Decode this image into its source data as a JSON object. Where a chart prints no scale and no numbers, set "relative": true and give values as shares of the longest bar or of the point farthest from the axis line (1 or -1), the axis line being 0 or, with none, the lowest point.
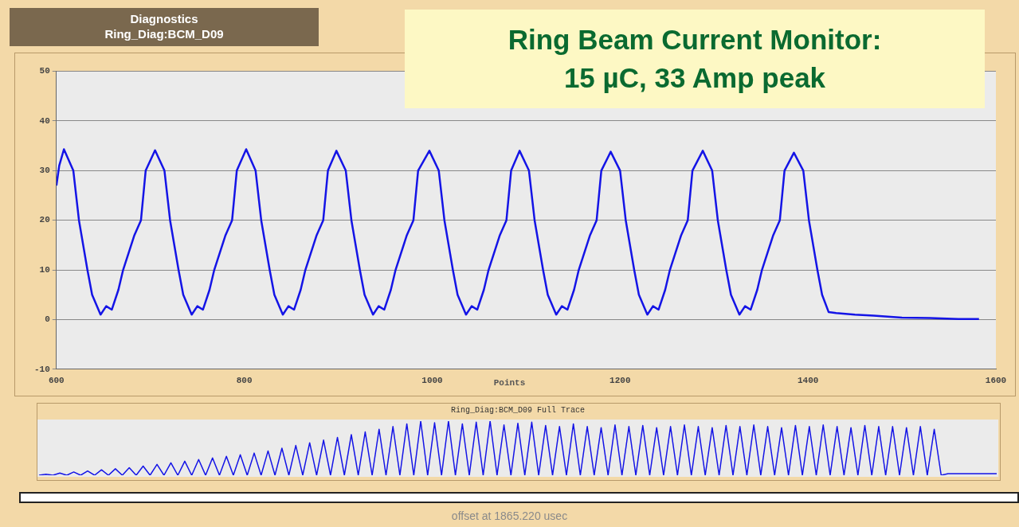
{
  "chart_data": [
    {
      "type": "line",
      "title": "Ring Beam Current Monitor:\n15 µC, 33 Amp peak",
      "subtitle": "Diagnostics\nRing_Diag:BCM_D09",
      "xlabel": "Points",
      "xlim": [
        600,
        1600
      ],
      "xticks": [
        600,
        800,
        1000,
        1200,
        1400,
        1600
      ],
      "ylim": [
        -10,
        50
      ],
      "yticks": [
        -10,
        0,
        10,
        20,
        30,
        40,
        50
      ],
      "grid": "y",
      "series": [
        {
          "color": "#1414e6",
          "x": [
            600,
            603,
            608,
            618,
            624,
            633,
            638,
            647,
            653,
            659,
            666,
            671,
            683,
            690,
            695,
            705,
            715,
            721,
            730,
            735,
            744,
            750,
            756,
            763,
            768,
            780,
            787,
            792,
            802,
            812,
            818,
            827,
            832,
            841,
            847,
            853,
            860,
            865,
            877,
            884,
            889,
            898,
            908,
            914,
            923,
            928,
            937,
            943,
            949,
            956,
            961,
            973,
            980,
            985,
            997,
            1007,
            1013,
            1022,
            1027,
            1036,
            1042,
            1048,
            1055,
            1060,
            1072,
            1079,
            1084,
            1093,
            1103,
            1109,
            1118,
            1123,
            1132,
            1138,
            1144,
            1151,
            1156,
            1168,
            1175,
            1180,
            1190,
            1200,
            1206,
            1215,
            1220,
            1229,
            1235,
            1241,
            1248,
            1253,
            1265,
            1272,
            1277,
            1288,
            1298,
            1304,
            1313,
            1318,
            1327,
            1333,
            1339,
            1346,
            1351,
            1363,
            1370,
            1375,
            1385,
            1395,
            1401,
            1410,
            1415,
            1422,
            1430,
            1450,
            1470,
            1500,
            1530,
            1560,
            1582
          ],
          "values": [
            27,
            31,
            34.3,
            30,
            20,
            10,
            5,
            1,
            2.7,
            2,
            6,
            10,
            17,
            20,
            30,
            34.1,
            30,
            20,
            10,
            5,
            1,
            2.7,
            2,
            6,
            10,
            17,
            20,
            30,
            34.3,
            30,
            20,
            10,
            5,
            1,
            2.7,
            2,
            6,
            10,
            17,
            20,
            30,
            34,
            30,
            20,
            10,
            5,
            1,
            2.7,
            2,
            6,
            10,
            17,
            20,
            30,
            34,
            30,
            20,
            10,
            5,
            1,
            2.7,
            2,
            6,
            10,
            17,
            20,
            30,
            34,
            30,
            20,
            10,
            5,
            1,
            2.7,
            2,
            6,
            10,
            17,
            20,
            30,
            33.8,
            30,
            20,
            10,
            5,
            1,
            2.7,
            2,
            6,
            10,
            17,
            20,
            30,
            34,
            30,
            20,
            10,
            5,
            1,
            2.7,
            2,
            6,
            10,
            17,
            20,
            30,
            33.6,
            30,
            20,
            10,
            5,
            1.5,
            1.3,
            1,
            0.8,
            0.4,
            0.3,
            0.1,
            0.1
          ]
        }
      ]
    },
    {
      "type": "line",
      "title": "Ring_Diag:BCM_D09 Full Trace",
      "relative": true,
      "annotations": [
        "offset at 1865.220 usec"
      ],
      "categories": [
        null,
        null,
        null,
        null,
        null,
        null,
        null,
        null,
        null,
        null,
        null,
        null,
        null,
        null,
        null,
        null,
        null,
        null,
        null,
        null,
        null,
        null,
        null,
        null,
        null,
        null,
        null,
        null,
        null,
        null,
        null,
        null,
        null,
        null,
        null,
        null,
        null,
        null,
        null,
        null,
        null,
        null,
        null,
        null,
        null,
        null,
        null,
        null,
        null,
        null,
        null,
        null,
        null,
        null,
        null,
        null,
        null,
        null,
        null,
        null,
        null,
        null,
        null,
        null,
        null,
        null,
        null,
        null,
        null,
        null,
        null,
        null,
        null,
        null,
        null,
        null,
        null,
        null,
        null,
        null,
        null,
        null,
        null,
        null,
        null,
        null,
        null,
        null,
        null,
        null,
        null,
        null,
        null,
        null,
        null,
        null,
        null,
        null,
        null,
        null,
        null,
        null,
        null,
        null,
        null,
        null,
        null,
        null,
        null,
        null,
        null,
        null,
        null,
        null,
        null,
        null,
        null,
        null,
        null,
        null,
        null,
        null,
        null,
        null,
        null,
        null,
        null,
        null,
        null,
        null,
        null,
        null,
        null,
        null,
        null,
        null,
        null,
        null,
        null
      ],
      "series": [
        {
          "color": "#1414e6",
          "values": [
            0,
            0.02,
            0,
            0.04,
            0,
            0.06,
            0,
            0.08,
            0,
            0.1,
            0,
            0.12,
            0,
            0.14,
            0,
            0.17,
            0,
            0.2,
            0,
            0.23,
            0,
            0.26,
            0,
            0.29,
            0,
            0.32,
            0,
            0.35,
            0,
            0.38,
            0,
            0.41,
            0,
            0.45,
            0,
            0.5,
            0,
            0.55,
            0,
            0.6,
            0,
            0.65,
            0,
            0.7,
            0,
            0.75,
            0,
            0.8,
            0,
            0.85,
            0,
            0.9,
            0,
            0.95,
            0,
            1,
            0,
            0.97,
            0,
            1,
            0,
            0.95,
            0,
            0.98,
            0,
            1,
            0,
            0.93,
            0,
            0.96,
            0,
            0.98,
            0,
            0.92,
            0,
            0.9,
            0,
            0.95,
            0,
            0.9,
            0,
            0.88,
            0,
            0.93,
            0,
            0.9,
            0,
            0.92,
            0,
            0.88,
            0,
            0.9,
            0,
            0.93,
            0,
            0.9,
            0,
            0.88,
            0,
            0.92,
            0,
            0.9,
            0,
            0.93,
            0,
            0.9,
            0,
            0.88,
            0,
            0.92,
            0,
            0.9,
            0,
            0.93,
            0,
            0.9,
            0,
            0.88,
            0,
            0.92,
            0,
            0.9,
            0,
            0.9,
            0,
            0.88,
            0,
            0.9,
            0,
            0.85,
            0,
            0.03,
            0.03,
            0.03,
            0.03,
            0.03,
            0.03,
            0.03,
            0.03
          ]
        }
      ]
    }
  ]
}
